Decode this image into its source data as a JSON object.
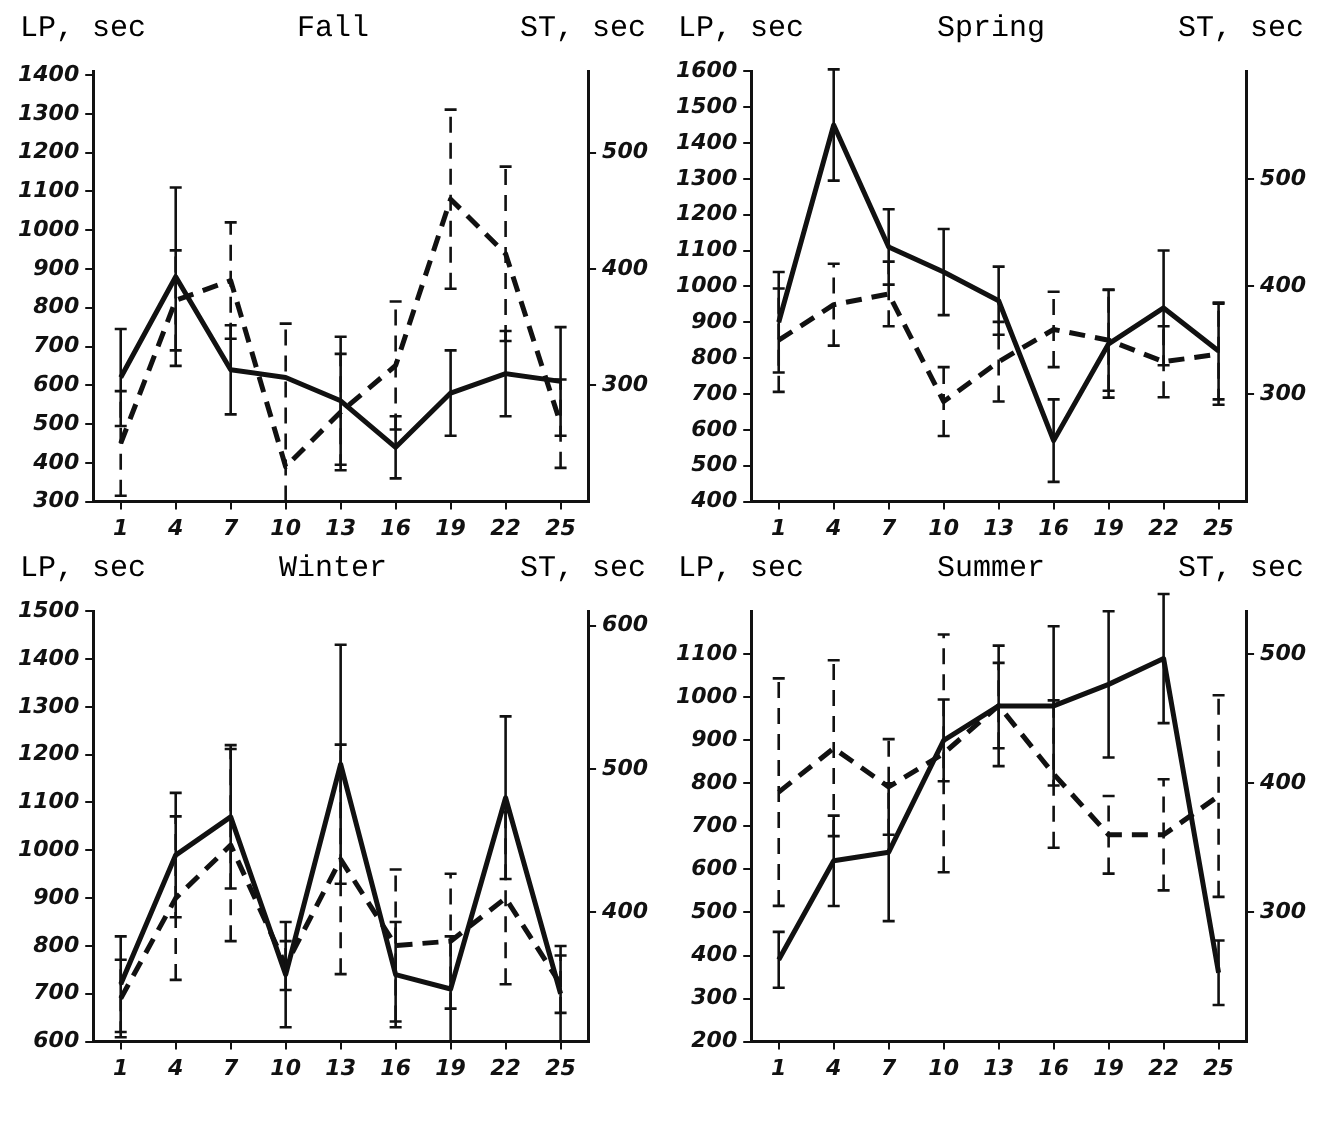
{
  "chart_data": [
    {
      "type": "line",
      "title": "Fall",
      "ylabel": "LP, sec",
      "y2label": "ST, sec",
      "categories": [
        "1",
        "4",
        "7",
        "10",
        "13",
        "16",
        "19",
        "22",
        "25"
      ],
      "ylim": [
        300,
        1410
      ],
      "yticks": [
        300,
        400,
        500,
        600,
        700,
        800,
        900,
        1000,
        1100,
        1200,
        1300,
        1400
      ],
      "y2lim": [
        200,
        570
      ],
      "y2ticks": [
        300,
        400,
        500
      ],
      "grid": false,
      "legend": false,
      "marker": "none",
      "series": [
        {
          "color": "#111111",
          "line_style": "solid",
          "values": [
            620,
            880,
            640,
            620,
            560,
            440,
            580,
            630,
            610
          ],
          "errors": [
            125,
            230,
            115,
            null,
            165,
            80,
            110,
            110,
            140
          ]
        },
        {
          "color": "#111111",
          "line_style": "dashed",
          "axis": "y2",
          "values": [
            250,
            373,
            390,
            230,
            277,
            317,
            460,
            413,
            267
          ],
          "errors": [
            45,
            43,
            50,
            [
              200,
              353
            ],
            50,
            55,
            77,
            75,
            38
          ]
        }
      ]
    },
    {
      "type": "line",
      "title": "Spring",
      "ylabel": "LP, sec",
      "y2label": "ST, sec",
      "categories": [
        "1",
        "4",
        "7",
        "10",
        "13",
        "16",
        "19",
        "22",
        "25"
      ],
      "ylim": [
        400,
        1600
      ],
      "yticks": [
        400,
        500,
        600,
        700,
        800,
        900,
        1000,
        1100,
        1200,
        1300,
        1400,
        1500,
        1600
      ],
      "y2lim": [
        200,
        600
      ],
      "y2ticks": [
        300,
        400,
        500
      ],
      "grid": false,
      "legend": false,
      "marker": "none",
      "series": [
        {
          "color": "#111111",
          "line_style": "solid",
          "values": [
            900,
            1450,
            1110,
            1040,
            960,
            570,
            840,
            940,
            820
          ],
          "errors": [
            140,
            155,
            105,
            120,
            95,
            115,
            150,
            160,
            135
          ]
        },
        {
          "color": "#111111",
          "line_style": "dashed",
          "axis": "y2",
          "values": [
            350,
            383,
            393,
            293,
            330,
            360,
            350,
            330,
            337
          ],
          "errors": [
            48,
            38,
            30,
            32,
            37,
            35,
            47,
            33,
            47
          ]
        }
      ]
    },
    {
      "type": "line",
      "title": "Winter",
      "ylabel": "LP, sec",
      "y2label": "ST, sec",
      "categories": [
        "1",
        "4",
        "7",
        "10",
        "13",
        "16",
        "19",
        "22",
        "25"
      ],
      "ylim": [
        600,
        1500
      ],
      "yticks": [
        600,
        700,
        800,
        900,
        1000,
        1100,
        1200,
        1300,
        1400,
        1500
      ],
      "y2lim": [
        310,
        610
      ],
      "y2ticks": [
        400,
        500,
        600
      ],
      "grid": false,
      "legend": false,
      "marker": "none",
      "series": [
        {
          "color": "#111111",
          "line_style": "solid",
          "values": [
            720,
            990,
            1070,
            740,
            1180,
            740,
            710,
            1110,
            700
          ],
          "errors": [
            100,
            130,
            150,
            110,
            250,
            110,
            110,
            170,
            100
          ]
        },
        {
          "color": "#111111",
          "line_style": "dashed",
          "axis": "y2",
          "values": [
            340,
            410,
            447,
            363,
            437,
            377,
            380,
            410,
            350
          ],
          "errors": [
            27,
            57,
            67,
            17,
            80,
            53,
            47,
            60,
            20
          ]
        }
      ]
    },
    {
      "type": "line",
      "title": "Summer",
      "ylabel": "LP, sec",
      "y2label": "ST, sec",
      "categories": [
        "1",
        "4",
        "7",
        "10",
        "13",
        "16",
        "19",
        "22",
        "25"
      ],
      "ylim": [
        200,
        1200
      ],
      "yticks": [
        200,
        300,
        400,
        500,
        600,
        700,
        800,
        900,
        1000,
        1100
      ],
      "y2lim": [
        200,
        533
      ],
      "y2ticks": [
        300,
        400,
        500
      ],
      "grid": false,
      "legend": false,
      "marker": "none",
      "series": [
        {
          "color": "#111111",
          "line_style": "solid",
          "values": [
            390,
            620,
            640,
            900,
            980,
            980,
            1030,
            1090,
            360
          ],
          "errors": [
            65,
            105,
            160,
            95,
            140,
            185,
            170,
            150,
            75
          ]
        },
        {
          "color": "#111111",
          "line_style": "dashed",
          "axis": "y2",
          "values": [
            393,
            427,
            397,
            423,
            460,
            407,
            360,
            360,
            390
          ],
          "errors": [
            88,
            68,
            37,
            92,
            33,
            57,
            30,
            43,
            78
          ]
        }
      ]
    }
  ]
}
